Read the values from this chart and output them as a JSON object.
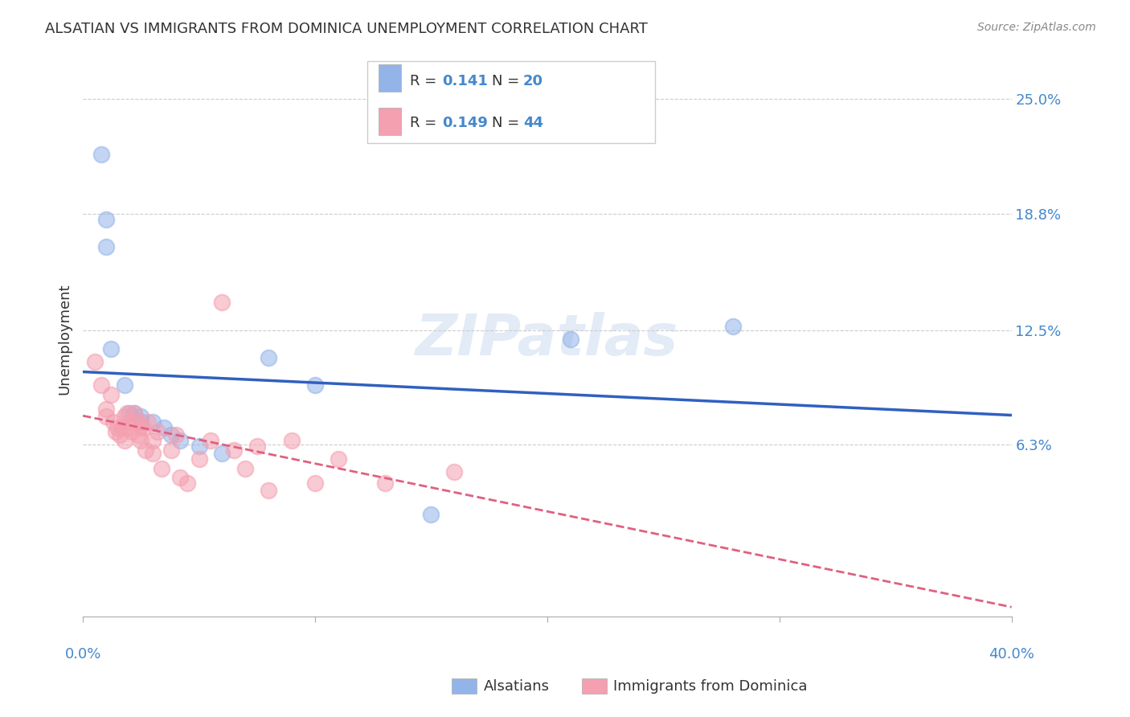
{
  "title": "ALSATIAN VS IMMIGRANTS FROM DOMINICA UNEMPLOYMENT CORRELATION CHART",
  "source": "Source: ZipAtlas.com",
  "ylabel": "Unemployment",
  "ytick_labels": [
    "6.3%",
    "12.5%",
    "18.8%",
    "25.0%"
  ],
  "ytick_values": [
    0.063,
    0.125,
    0.188,
    0.25
  ],
  "xmin": 0.0,
  "xmax": 0.4,
  "ymin": -0.03,
  "ymax": 0.27,
  "series1_color": "#92b4e8",
  "series2_color": "#f4a0b0",
  "line1_color": "#3060c0",
  "line2_color": "#e06080",
  "alsatians_x": [
    0.008,
    0.01,
    0.01,
    0.012,
    0.018,
    0.02,
    0.022,
    0.025,
    0.025,
    0.03,
    0.035,
    0.038,
    0.042,
    0.05,
    0.06,
    0.08,
    0.1,
    0.15,
    0.21,
    0.28
  ],
  "alsatians_y": [
    0.22,
    0.185,
    0.17,
    0.115,
    0.095,
    0.08,
    0.08,
    0.078,
    0.075,
    0.075,
    0.072,
    0.068,
    0.065,
    0.062,
    0.058,
    0.11,
    0.095,
    0.025,
    0.12,
    0.127
  ],
  "dominica_x": [
    0.005,
    0.008,
    0.01,
    0.01,
    0.012,
    0.013,
    0.014,
    0.015,
    0.016,
    0.017,
    0.018,
    0.018,
    0.019,
    0.02,
    0.02,
    0.021,
    0.022,
    0.023,
    0.024,
    0.025,
    0.025,
    0.026,
    0.027,
    0.028,
    0.03,
    0.03,
    0.032,
    0.034,
    0.038,
    0.04,
    0.042,
    0.045,
    0.05,
    0.055,
    0.06,
    0.065,
    0.07,
    0.075,
    0.08,
    0.09,
    0.1,
    0.11,
    0.13,
    0.16
  ],
  "dominica_y": [
    0.108,
    0.095,
    0.082,
    0.078,
    0.09,
    0.075,
    0.07,
    0.072,
    0.068,
    0.072,
    0.078,
    0.065,
    0.08,
    0.075,
    0.072,
    0.07,
    0.08,
    0.075,
    0.068,
    0.073,
    0.065,
    0.072,
    0.06,
    0.075,
    0.065,
    0.058,
    0.07,
    0.05,
    0.06,
    0.068,
    0.045,
    0.042,
    0.055,
    0.065,
    0.14,
    0.06,
    0.05,
    0.062,
    0.038,
    0.065,
    0.042,
    0.055,
    0.042,
    0.048
  ]
}
